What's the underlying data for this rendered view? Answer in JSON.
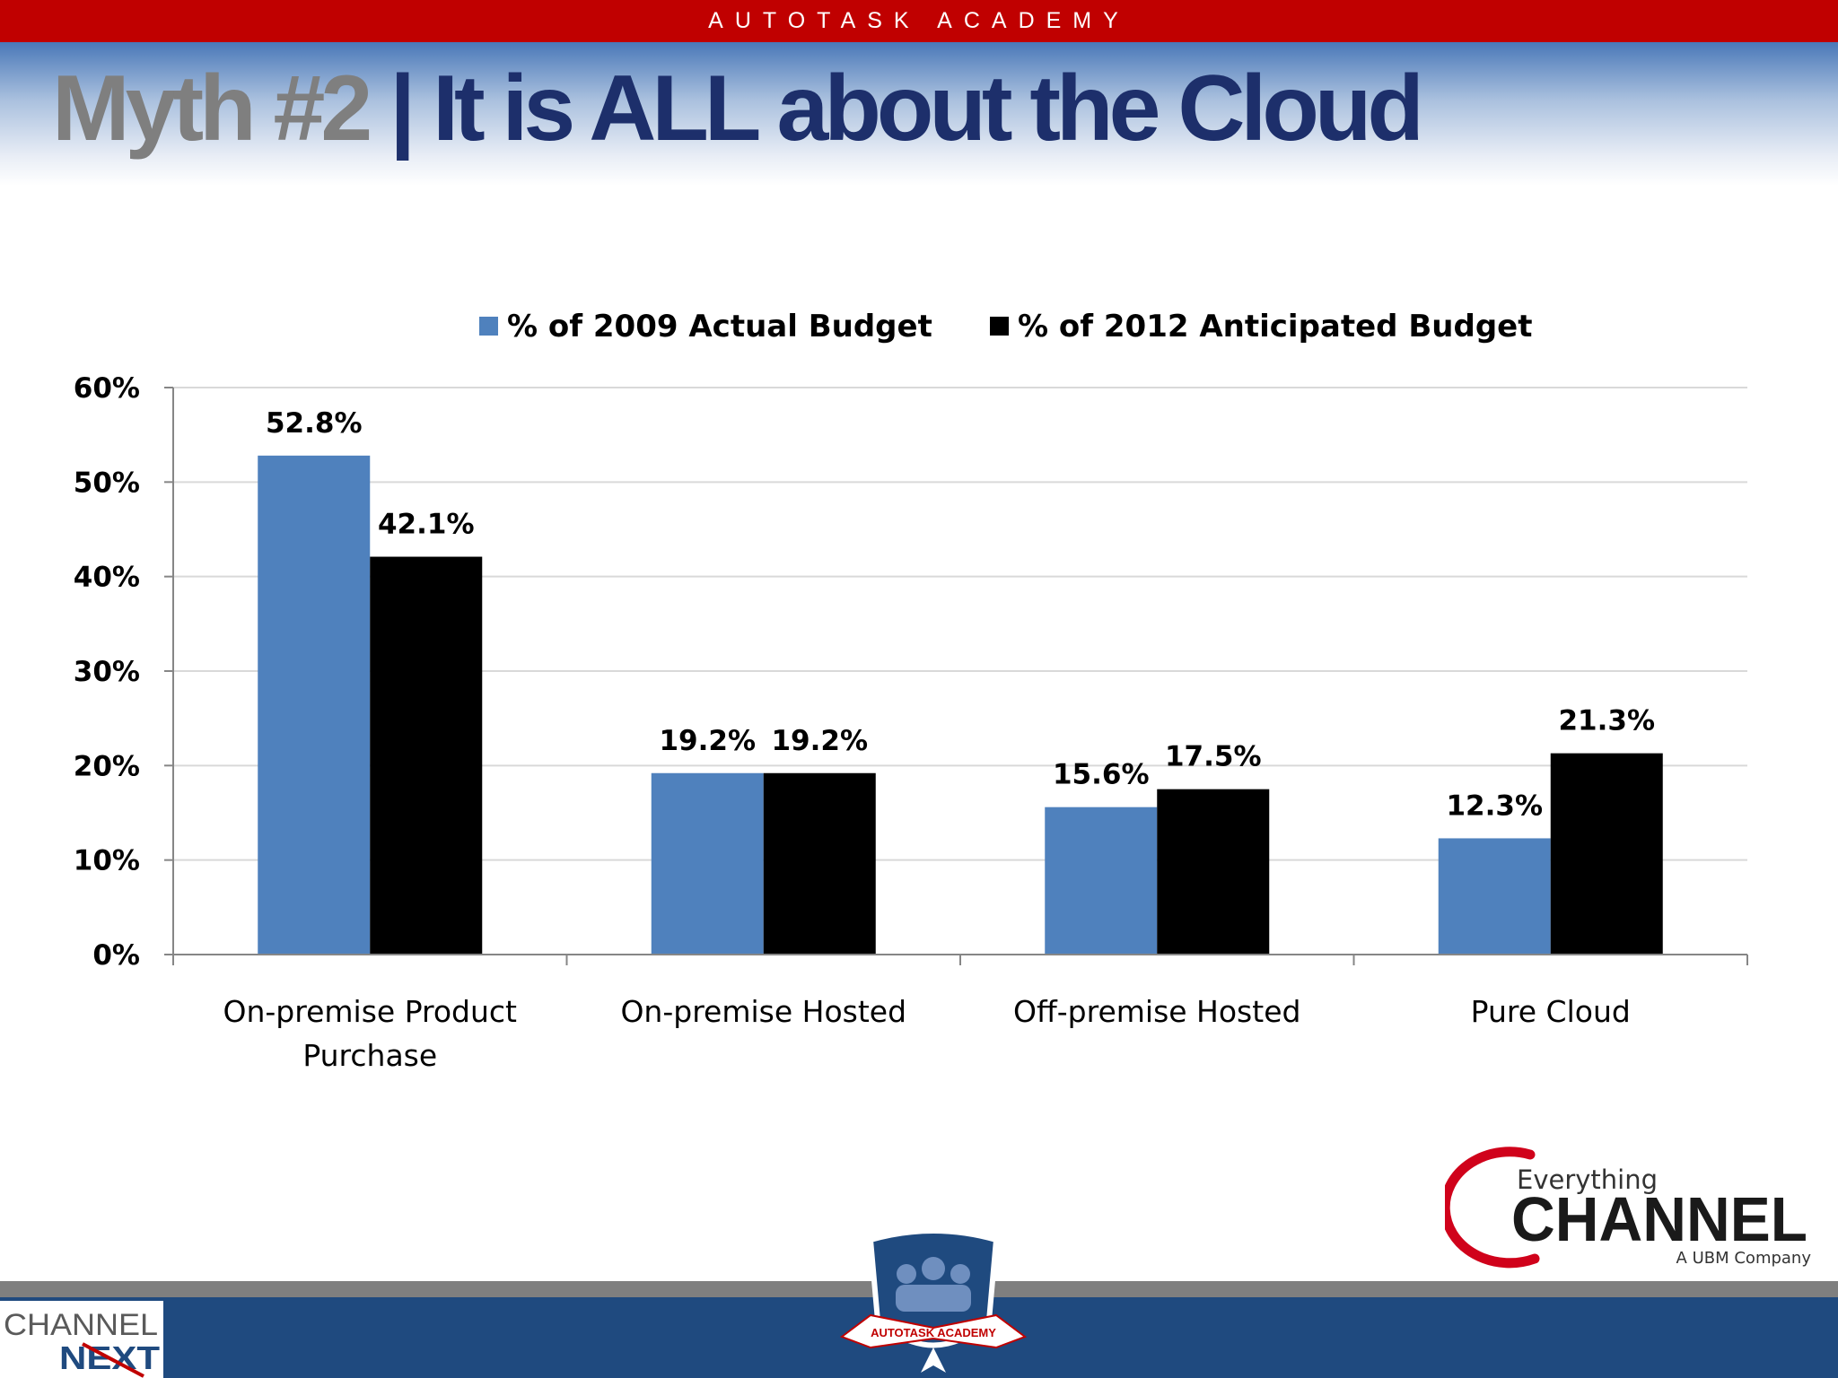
{
  "header": {
    "banner": "AUTOTASK ACADEMY"
  },
  "slide": {
    "title_part1": "Myth #2",
    "title_separator": " | ",
    "title_part2": "It is ALL about the Cloud"
  },
  "colors": {
    "banner_red": "#c00000",
    "title_grey": "#7f7f7f",
    "title_navy": "#1d2f6b",
    "series_2009": "#4f81bd",
    "series_2012": "#000000",
    "footer_blue": "#1f4a7f"
  },
  "chart_data": {
    "type": "bar",
    "categories": [
      "On-premise Product Purchase",
      "On-premise Hosted",
      "Off-premise Hosted",
      "Pure Cloud"
    ],
    "category_lines": [
      [
        "On-premise Product",
        "Purchase"
      ],
      [
        "On-premise Hosted"
      ],
      [
        "Off-premise Hosted"
      ],
      [
        "Pure Cloud"
      ]
    ],
    "series": [
      {
        "name": "% of 2009 Actual Budget",
        "values": [
          52.8,
          19.2,
          15.6,
          12.3
        ],
        "labels": [
          "52.8%",
          "19.2%",
          "15.6%",
          "12.3%"
        ],
        "color": "#4f81bd"
      },
      {
        "name": "% of 2012 Anticipated Budget",
        "values": [
          42.1,
          19.2,
          17.5,
          21.3
        ],
        "labels": [
          "42.1%",
          "19.2%",
          "17.5%",
          "21.3%"
        ],
        "color": "#000000"
      }
    ],
    "yticks": [
      0,
      10,
      20,
      30,
      40,
      50,
      60
    ],
    "ytick_labels": [
      "0%",
      "10%",
      "20%",
      "30%",
      "40%",
      "50%",
      "60%"
    ],
    "ylim": [
      0,
      60
    ],
    "grid": true,
    "legend": "top"
  },
  "logos": {
    "everything": "Everything",
    "channel": "CHANNEL",
    "ubm": "A UBM Company",
    "channel_next_1": "CHANNEL",
    "channel_next_2": "NEXT",
    "academy_ribbon": "AUTOTASK ACADEMY"
  }
}
